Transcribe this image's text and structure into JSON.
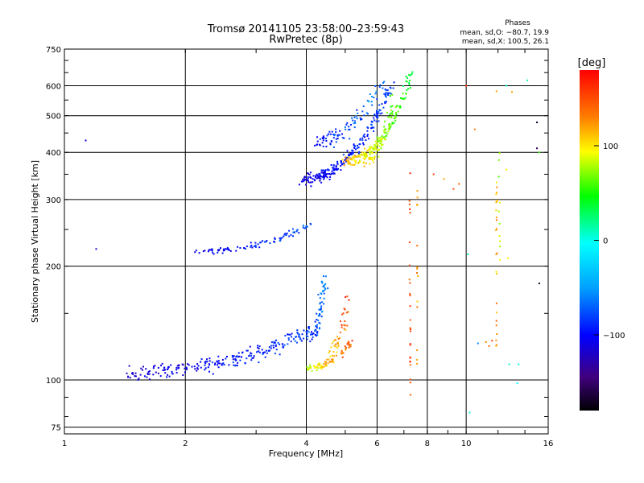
{
  "chart_data": {
    "type": "scatter",
    "title": "Tromsø 20141105 23:58:00–23:59:43",
    "subtitle": "RwPretec (8p)",
    "xlabel": "Frequency [MHz]",
    "ylabel": "Stationary phase Virtual Height [km]",
    "x_scale": "log",
    "y_scale": "log",
    "xlim": [
      1,
      16
    ],
    "ylim": [
      72,
      750
    ],
    "x_ticks": [
      "1",
      "2",
      "4",
      "6",
      "8",
      "10",
      "16"
    ],
    "x_tick_values": [
      1,
      2,
      4,
      6,
      8,
      10,
      16
    ],
    "y_ticks": [
      "75",
      "100",
      "200",
      "300",
      "400",
      "500",
      "600",
      "750"
    ],
    "y_tick_values": [
      75,
      100,
      200,
      300,
      400,
      500,
      600,
      750
    ],
    "grid": true,
    "phases_box": {
      "title": "Phases",
      "line1": "mean, sd,O: −80.7, 19.9",
      "line2": "mean, sd,X: 100.5, 26.1"
    },
    "colorbar": {
      "label": "[deg]",
      "range": [
        -180,
        180
      ],
      "ticks": [
        "100",
        "0",
        "−100"
      ],
      "tick_values": [
        100,
        0,
        -100
      ]
    },
    "traces": [
      {
        "f_start": 1.45,
        "f_end": 4.1,
        "h_start": 105,
        "h_end": 135,
        "count": 240,
        "spread": 0.05,
        "phase_start": -120,
        "phase_end": -80
      },
      {
        "f_start": 4.1,
        "f_end": 4.45,
        "h_start": 130,
        "h_end": 190,
        "count": 70,
        "spread": 0.08,
        "phase_start": -95,
        "phase_end": -55
      },
      {
        "f_start": 4.0,
        "f_end": 5.15,
        "h_start": 108,
        "h_end": 125,
        "count": 80,
        "spread": 0.025,
        "phase_start": 80,
        "phase_end": 150
      },
      {
        "f_start": 4.6,
        "f_end": 5.1,
        "h_start": 120,
        "h_end": 170,
        "count": 40,
        "spread": 0.05,
        "phase_start": 100,
        "phase_end": 160
      },
      {
        "f_start": 2.1,
        "f_end": 4.1,
        "h_start": 218,
        "h_end": 258,
        "count": 90,
        "spread": 0.018,
        "phase_start": -110,
        "phase_end": -75
      },
      {
        "f_start": 3.9,
        "f_end": 6.6,
        "h_start": 340,
        "h_end": 620,
        "count": 240,
        "spread": 0.04,
        "phase_start": -110,
        "phase_end": -80
      },
      {
        "f_start": 4.2,
        "f_end": 6.2,
        "h_start": 430,
        "h_end": 610,
        "count": 90,
        "spread": 0.06,
        "phase_start": -100,
        "phase_end": -60
      },
      {
        "f_start": 5.0,
        "f_end": 7.3,
        "h_start": 380,
        "h_end": 640,
        "count": 170,
        "spread": 0.04,
        "phase_start": 120,
        "phase_end": 40
      },
      {
        "f_start": 5.6,
        "f_end": 6.6,
        "h_start": 380,
        "h_end": 560,
        "count": 60,
        "spread": 0.05,
        "phase_start": 110,
        "phase_end": 60
      }
    ],
    "isolated_points": [
      {
        "f": 1.13,
        "h": 430,
        "phase": -110
      },
      {
        "f": 1.2,
        "h": 222,
        "phase": -120
      },
      {
        "f": 8.3,
        "h": 350,
        "phase": 150
      },
      {
        "f": 8.8,
        "h": 340,
        "phase": 120
      },
      {
        "f": 9.3,
        "h": 320,
        "phase": 150
      },
      {
        "f": 9.6,
        "h": 330,
        "phase": 140
      },
      {
        "f": 10.0,
        "h": 600,
        "phase": 160
      },
      {
        "f": 10.1,
        "h": 215,
        "phase": 20
      },
      {
        "f": 10.2,
        "h": 82,
        "phase": 10
      },
      {
        "f": 10.5,
        "h": 460,
        "phase": 130
      },
      {
        "f": 10.7,
        "h": 125,
        "phase": -60
      },
      {
        "f": 11.2,
        "h": 126,
        "phase": 130
      },
      {
        "f": 11.4,
        "h": 123,
        "phase": 140
      },
      {
        "f": 11.6,
        "h": 127,
        "phase": 150
      },
      {
        "f": 11.9,
        "h": 580,
        "phase": 120
      },
      {
        "f": 12.6,
        "h": 600,
        "phase": 10
      },
      {
        "f": 12.6,
        "h": 360,
        "phase": 100
      },
      {
        "f": 12.7,
        "h": 210,
        "phase": 100
      },
      {
        "f": 12.8,
        "h": 110,
        "phase": 10
      },
      {
        "f": 13.0,
        "h": 578,
        "phase": 120
      },
      {
        "f": 13.4,
        "h": 98,
        "phase": 0
      },
      {
        "f": 13.5,
        "h": 110,
        "phase": 10
      },
      {
        "f": 14.2,
        "h": 620,
        "phase": 20
      },
      {
        "f": 15.0,
        "h": 480,
        "phase": -170
      },
      {
        "f": 15.0,
        "h": 410,
        "phase": -160
      },
      {
        "f": 15.2,
        "h": 180,
        "phase": -170
      },
      {
        "f": 15.2,
        "h": 400,
        "phase": 60
      }
    ],
    "vertical_streaks": [
      {
        "f": 7.25,
        "h_min": 80,
        "h_max": 370,
        "count": 26,
        "phase": 150
      },
      {
        "f": 7.55,
        "h_min": 95,
        "h_max": 330,
        "count": 14,
        "phase": 130
      },
      {
        "f": 11.9,
        "h_min": 120,
        "h_max": 460,
        "count": 24,
        "phase": 120
      },
      {
        "f": 12.1,
        "h_min": 200,
        "h_max": 450,
        "count": 10,
        "phase": 80
      }
    ]
  }
}
